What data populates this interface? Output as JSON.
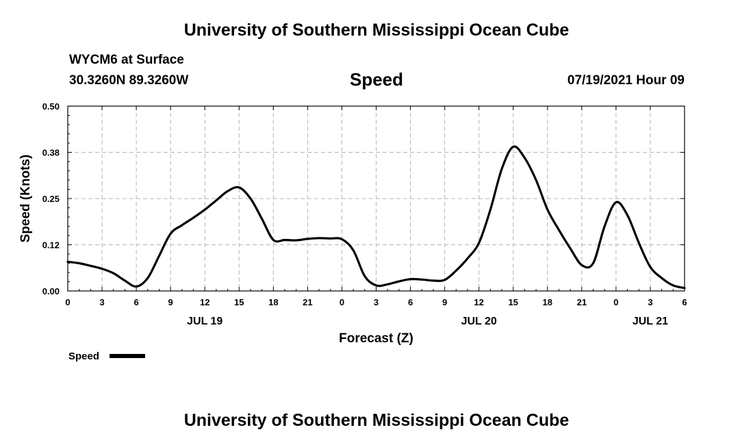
{
  "header": {
    "title": "University of Southern Mississippi Ocean Cube",
    "station": "WYCM6 at Surface",
    "coords": "30.3260N  89.3260W",
    "variable": "Speed",
    "datetime": "07/19/2021 Hour 09"
  },
  "footer": {
    "title": "University of Southern Mississippi Ocean Cube"
  },
  "chart_data": {
    "type": "line",
    "title": "Speed",
    "xlabel": "Forecast (Z)",
    "ylabel": "Speed (Knots)",
    "xlim": [
      0,
      54
    ],
    "ylim": [
      0,
      0.5
    ],
    "grid": true,
    "x_ticks": [
      0,
      3,
      6,
      9,
      12,
      15,
      18,
      21,
      24,
      27,
      30,
      33,
      36,
      39,
      42,
      45,
      48,
      51,
      54
    ],
    "x_tick_labels": [
      "0",
      "3",
      "6",
      "9",
      "12",
      "15",
      "18",
      "21",
      "0",
      "3",
      "6",
      "9",
      "12",
      "15",
      "18",
      "21",
      "0",
      "3",
      "6"
    ],
    "y_ticks": [
      0,
      0.125,
      0.25,
      0.375,
      0.5
    ],
    "y_tick_labels": [
      "0.00",
      "0.12",
      "0.25",
      "0.38",
      "0.50"
    ],
    "date_labels": [
      {
        "x": 12,
        "label": "JUL 19"
      },
      {
        "x": 36,
        "label": "JUL 20"
      },
      {
        "x": 51,
        "label": "JUL 21"
      }
    ],
    "legend": {
      "position": "bottom-left",
      "entries": [
        "Speed"
      ]
    },
    "series": [
      {
        "name": "Speed",
        "x": [
          0,
          1,
          2,
          3,
          4,
          5,
          6,
          7,
          8,
          9,
          10,
          11,
          12,
          13,
          14,
          15,
          16,
          17,
          18,
          19,
          20,
          21,
          22,
          23,
          24,
          25,
          26,
          27,
          28,
          29,
          30,
          31,
          32,
          33,
          34,
          35,
          36,
          37,
          38,
          39,
          40,
          41,
          42,
          43,
          44,
          45,
          46,
          47,
          48,
          49,
          50,
          51,
          52,
          53,
          54
        ],
        "values": [
          0.079,
          0.075,
          0.068,
          0.06,
          0.048,
          0.028,
          0.012,
          0.035,
          0.095,
          0.155,
          0.178,
          0.198,
          0.22,
          0.245,
          0.27,
          0.28,
          0.25,
          0.195,
          0.138,
          0.138,
          0.137,
          0.141,
          0.143,
          0.142,
          0.14,
          0.11,
          0.04,
          0.015,
          0.018,
          0.026,
          0.032,
          0.031,
          0.028,
          0.03,
          0.055,
          0.088,
          0.13,
          0.22,
          0.33,
          0.39,
          0.36,
          0.3,
          0.22,
          0.165,
          0.115,
          0.07,
          0.075,
          0.175,
          0.24,
          0.205,
          0.13,
          0.065,
          0.035,
          0.015,
          0.008
        ]
      }
    ]
  }
}
